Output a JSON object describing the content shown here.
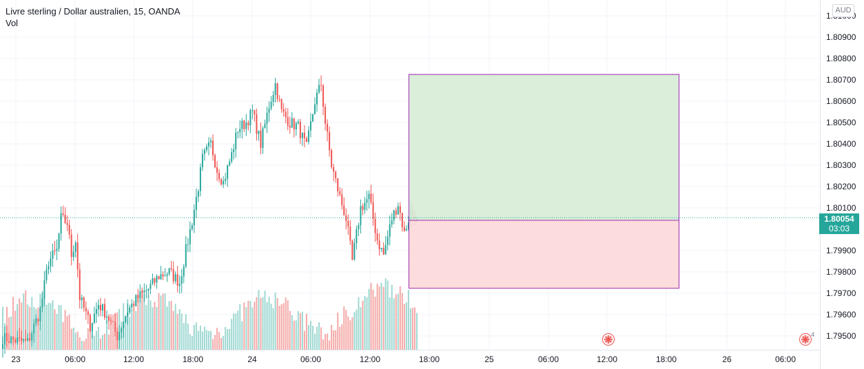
{
  "header": {
    "symbol_title": "Livre sterling / Dollar australien, 15, OANDA",
    "volume_label": "Vol",
    "currency_badge": "AUD"
  },
  "price_tag": {
    "price": "1.80054",
    "countdown": "03:03"
  },
  "events": {
    "second_count": "4"
  },
  "colors": {
    "up": "#26a69a",
    "down": "#ef5350",
    "vol_up": "#9ed8d1",
    "vol_down": "#f4a9a7",
    "profit_fill": "#d6ecd6",
    "loss_fill": "#fcd8d8",
    "position_border": "#9c27b0",
    "grid": "#f0f3fa",
    "price_line": "#26a69a"
  },
  "chart_data": {
    "type": "candlestick",
    "interval_minutes": 15,
    "y_axis": {
      "range": [
        1.7944,
        1.8104
      ],
      "ticks": [
        "1.81000",
        "1.80900",
        "1.80800",
        "1.80700",
        "1.80600",
        "1.80500",
        "1.80400",
        "1.80300",
        "1.80200",
        "1.80100",
        "1.79900",
        "1.79800",
        "1.79700",
        "1.79600",
        "1.79500"
      ]
    },
    "x_axis": {
      "ticks": [
        "23",
        "06:00",
        "12:00",
        "18:00",
        "24",
        "06:00",
        "12:00",
        "18:00",
        "25",
        "06:00",
        "12:00",
        "18:00",
        "26",
        "06:00"
      ]
    },
    "last_price": 1.80054,
    "close_anchors": [
      [
        0,
        1.7949
      ],
      [
        12,
        1.7947
      ],
      [
        18,
        1.7962
      ],
      [
        22,
        1.7985
      ],
      [
        26,
        1.799
      ],
      [
        28,
        1.8005
      ],
      [
        31,
        1.8003
      ],
      [
        33,
        1.7988
      ],
      [
        35,
        1.7995
      ],
      [
        37,
        1.7968
      ],
      [
        42,
        1.7955
      ],
      [
        46,
        1.7965
      ],
      [
        50,
        1.796
      ],
      [
        55,
        1.795
      ],
      [
        60,
        1.7962
      ],
      [
        65,
        1.7968
      ],
      [
        70,
        1.7972
      ],
      [
        75,
        1.7978
      ],
      [
        80,
        1.798
      ],
      [
        85,
        1.7975
      ],
      [
        88,
        1.799
      ],
      [
        91,
        1.8004
      ],
      [
        94,
        1.802
      ],
      [
        96,
        1.8033
      ],
      [
        100,
        1.804
      ],
      [
        103,
        1.8028
      ],
      [
        106,
        1.8022
      ],
      [
        110,
        1.8035
      ],
      [
        113,
        1.8047
      ],
      [
        117,
        1.805
      ],
      [
        120,
        1.8055
      ],
      [
        124,
        1.804
      ],
      [
        128,
        1.8058
      ],
      [
        131,
        1.8068
      ],
      [
        134,
        1.8055
      ],
      [
        138,
        1.805
      ],
      [
        142,
        1.8048
      ],
      [
        146,
        1.8038
      ],
      [
        150,
        1.806
      ],
      [
        153,
        1.8068
      ],
      [
        155,
        1.805
      ],
      [
        158,
        1.803
      ],
      [
        162,
        1.8015
      ],
      [
        165,
        1.8005
      ],
      [
        168,
        1.7985
      ],
      [
        172,
        1.801
      ],
      [
        176,
        1.8015
      ],
      [
        180,
        1.7995
      ],
      [
        183,
        1.7988
      ],
      [
        187,
        1.8005
      ],
      [
        190,
        1.8012
      ],
      [
        193,
        1.7998
      ],
      [
        196,
        1.8008
      ],
      [
        199,
        1.8005
      ]
    ],
    "position": {
      "type": "long",
      "entry": 1.80042,
      "take_profit": 1.80727,
      "stop_loss": 1.79725
    }
  }
}
